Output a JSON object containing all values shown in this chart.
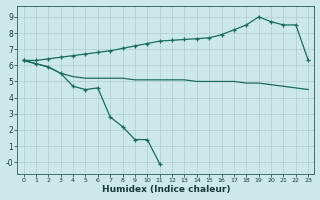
{
  "background_color": "#cce8e8",
  "grid_color": "#b8d8d8",
  "line_color": "#1a6b60",
  "xlabel": "Humidex (Indice chaleur)",
  "xlabel_fontsize": 6.5,
  "xlim": [
    -0.5,
    23.5
  ],
  "ylim": [
    -0.7,
    9.7
  ],
  "xticks": [
    0,
    1,
    2,
    3,
    4,
    5,
    6,
    7,
    8,
    9,
    10,
    11,
    12,
    13,
    14,
    15,
    16,
    17,
    18,
    19,
    20,
    21,
    22,
    23
  ],
  "yticks": [
    0,
    1,
    2,
    3,
    4,
    5,
    6,
    7,
    8,
    9
  ],
  "ytick_labels": [
    "-0",
    "1",
    "2",
    "3",
    "4",
    "5",
    "6",
    "7",
    "8",
    "9"
  ],
  "line_a_x": [
    0,
    1,
    2,
    3,
    4,
    5,
    6,
    7,
    8,
    9,
    10,
    11
  ],
  "line_a_y": [
    6.3,
    6.1,
    5.9,
    5.5,
    4.7,
    4.5,
    4.6,
    2.8,
    2.2,
    1.4,
    1.4,
    -0.1
  ],
  "line_b_x": [
    0,
    1,
    2,
    3,
    4,
    5,
    6,
    7,
    8,
    9,
    10,
    11,
    12,
    13,
    14,
    15,
    16,
    17,
    18,
    19,
    20,
    21,
    22,
    23
  ],
  "line_b_y": [
    6.3,
    6.1,
    5.9,
    5.5,
    5.3,
    5.2,
    5.2,
    5.2,
    5.2,
    5.1,
    5.1,
    5.1,
    5.1,
    5.1,
    5.0,
    5.0,
    5.0,
    5.0,
    4.9,
    4.9,
    4.8,
    4.7,
    4.6,
    4.5
  ],
  "line_c_x": [
    0,
    1,
    2,
    3,
    4,
    5,
    6,
    7,
    8,
    9,
    10,
    11,
    12,
    13,
    14,
    15,
    16,
    17,
    18,
    19,
    20,
    21,
    22,
    23
  ],
  "line_c_y": [
    6.3,
    6.3,
    6.4,
    6.5,
    6.6,
    6.7,
    6.8,
    6.9,
    7.05,
    7.2,
    7.35,
    7.5,
    7.55,
    7.6,
    7.65,
    7.7,
    7.9,
    8.2,
    8.5,
    9.0,
    8.7,
    8.5,
    8.5,
    6.3
  ]
}
